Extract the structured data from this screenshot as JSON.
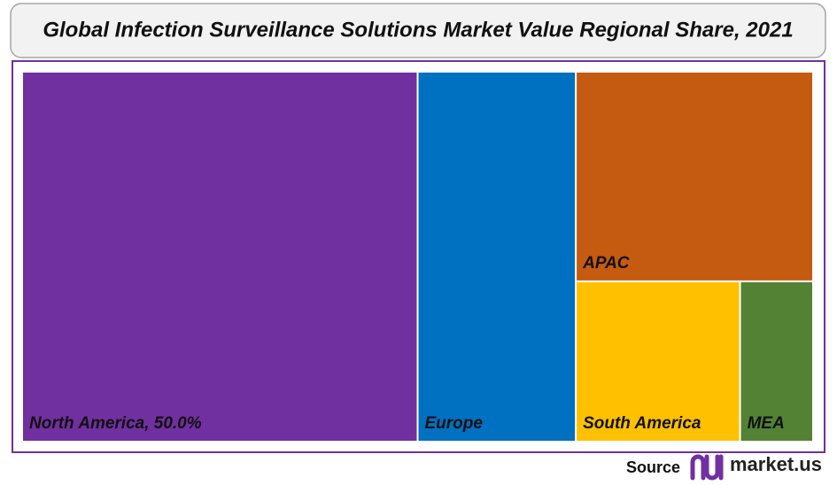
{
  "chart_data": {
    "type": "treemap",
    "title": "Global Infection Surveillance Solutions Market Value Regional Share, 2021",
    "categories": [
      "North America, 50.0%",
      "Europe",
      "APAC",
      "South America",
      "MEA"
    ],
    "values": [
      50,
      20,
      17,
      9,
      4
    ],
    "colors": [
      "#7030a0",
      "#0070c0",
      "#c55a11",
      "#ffc000",
      "#548235"
    ]
  },
  "source": {
    "label": "Source",
    "brand": "market.us"
  }
}
